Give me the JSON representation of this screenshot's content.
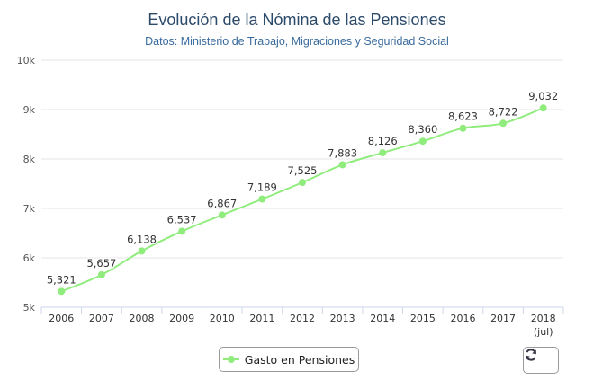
{
  "chart_data": {
    "type": "line",
    "title": "Evolución de la Nómina de las Pensiones",
    "subtitle": "Datos: Ministerio de Trabajo, Migraciones y Seguridad Social",
    "categories": [
      "2006",
      "2007",
      "2008",
      "2009",
      "2010",
      "2011",
      "2012",
      "2013",
      "2014",
      "2015",
      "2016",
      "2017",
      "2018"
    ],
    "category_sublabels": [
      "",
      "",
      "",
      "",
      "",
      "",
      "",
      "",
      "",
      "",
      "",
      "",
      "(jul)"
    ],
    "series": [
      {
        "name": "Gasto en Pensiones",
        "values": [
          5321,
          5657,
          6138,
          6537,
          6867,
          7189,
          7525,
          7883,
          8126,
          8360,
          8623,
          8722,
          9032
        ],
        "data_labels": [
          "5,321",
          "5,657",
          "6,138",
          "6,537",
          "6,867",
          "7,189",
          "7,525",
          "7,883",
          "8,126",
          "8,360",
          "8,623",
          "8,722",
          "9,032"
        ],
        "color": "#90ed7d"
      }
    ],
    "ylim": [
      5000,
      10000
    ],
    "yticks": [
      5000,
      6000,
      7000,
      8000,
      9000,
      10000
    ],
    "ytick_labels": [
      "5k",
      "6k",
      "7k",
      "8k",
      "9k",
      "10k"
    ],
    "xlabel": "",
    "ylabel": "",
    "grid": true,
    "legend_position": "bottom-center"
  },
  "colors": {
    "series": "#90ed7d",
    "title": "#2c4a6a",
    "subtitle": "#3a6b9e",
    "grid": "#e6e6e6",
    "axis": "#ccd6eb"
  },
  "refresh_button": {
    "icon": "refresh-icon"
  }
}
